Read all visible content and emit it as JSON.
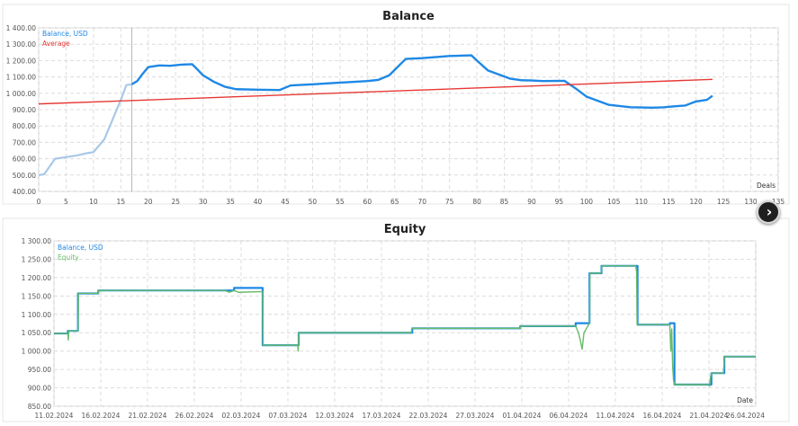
{
  "charts": [
    {
      "type": "line",
      "title": "Balance",
      "xlabel": "Deals",
      "xlim": [
        0,
        135
      ],
      "ylim": [
        400,
        1400
      ],
      "x_ticks": [
        0,
        5,
        10,
        15,
        20,
        25,
        30,
        35,
        40,
        45,
        50,
        55,
        60,
        65,
        70,
        75,
        80,
        85,
        90,
        95,
        100,
        105,
        110,
        115,
        120,
        125,
        130,
        135
      ],
      "y_ticks": [
        "400.00",
        "500.00",
        "600.00",
        "700.00",
        "800.00",
        "900.00",
        "1 000.00",
        "1 100.00",
        "1 200.00",
        "1 300.00",
        "1 400.00"
      ],
      "y_tick_values": [
        400,
        500,
        600,
        700,
        800,
        900,
        1000,
        1100,
        1200,
        1300,
        1400
      ],
      "grid": true,
      "legend": {
        "placement": "top-left",
        "entries": [
          "Balance, USD",
          "Average"
        ]
      },
      "marker_deal": 17,
      "series": [
        {
          "name": "Balance, USD",
          "color": "#1e88e5",
          "faded_color": "#a8c8e6",
          "faded_until": 17,
          "points": [
            [
              0,
              500
            ],
            [
              1,
              505
            ],
            [
              3,
              600
            ],
            [
              5,
              610
            ],
            [
              7,
              620
            ],
            [
              9,
              635
            ],
            [
              10,
              640
            ],
            [
              12,
              720
            ],
            [
              13,
              800
            ],
            [
              14,
              880
            ],
            [
              15,
              960
            ],
            [
              16,
              1050
            ],
            [
              17,
              1055
            ],
            [
              18,
              1075
            ],
            [
              19,
              1120
            ],
            [
              20,
              1160
            ],
            [
              22,
              1170
            ],
            [
              24,
              1168
            ],
            [
              26,
              1175
            ],
            [
              28,
              1178
            ],
            [
              29,
              1145
            ],
            [
              30,
              1110
            ],
            [
              32,
              1070
            ],
            [
              34,
              1040
            ],
            [
              36,
              1025
            ],
            [
              40,
              1022
            ],
            [
              44,
              1020
            ],
            [
              46,
              1048
            ],
            [
              50,
              1055
            ],
            [
              55,
              1065
            ],
            [
              60,
              1075
            ],
            [
              62,
              1082
            ],
            [
              64,
              1110
            ],
            [
              67,
              1210
            ],
            [
              70,
              1215
            ],
            [
              75,
              1228
            ],
            [
              79,
              1232
            ],
            [
              80,
              1200
            ],
            [
              82,
              1140
            ],
            [
              86,
              1090
            ],
            [
              88,
              1080
            ],
            [
              90,
              1078
            ],
            [
              92,
              1075
            ],
            [
              96,
              1076
            ],
            [
              98,
              1030
            ],
            [
              100,
              980
            ],
            [
              104,
              930
            ],
            [
              108,
              915
            ],
            [
              112,
              912
            ],
            [
              114,
              914
            ],
            [
              116,
              920
            ],
            [
              118,
              925
            ],
            [
              120,
              950
            ],
            [
              122,
              960
            ],
            [
              123,
              985
            ]
          ]
        },
        {
          "name": "Average",
          "color": "#e53935",
          "points": [
            [
              0,
              935
            ],
            [
              123,
              1085
            ]
          ]
        }
      ]
    },
    {
      "type": "line",
      "title": "Equity",
      "xlabel": "Date",
      "x_tick_labels": [
        "11.02.2024",
        "16.02.2024",
        "21.02.2024",
        "26.02.2024",
        "02.03.2024",
        "07.03.2024",
        "12.03.2024",
        "17.03.2024",
        "22.03.2024",
        "27.03.2024",
        "01.04.2024",
        "06.04.2024",
        "11.04.2024",
        "16.04.2024",
        "21.04.2024",
        "26.04.2024"
      ],
      "xlim": [
        0,
        76
      ],
      "ylim": [
        850,
        1300
      ],
      "y_ticks": [
        "850.00",
        "900.00",
        "950.00",
        "1 000.00",
        "1 050.00",
        "1 100.00",
        "1 150.00",
        "1 200.00",
        "1 250.00",
        "1 300.00"
      ],
      "y_tick_values": [
        850,
        900,
        950,
        1000,
        1050,
        1100,
        1150,
        1200,
        1250,
        1300
      ],
      "grid": true,
      "legend": {
        "placement": "top-left",
        "entries": [
          "Balance, USD",
          "Equity"
        ]
      },
      "series": [
        {
          "name": "Balance, USD",
          "color": "#1e88e5",
          "points": [
            [
              0,
              1048
            ],
            [
              1.5,
              1048
            ],
            [
              1.5,
              1055
            ],
            [
              2.6,
              1055
            ],
            [
              2.6,
              1157
            ],
            [
              4.8,
              1157
            ],
            [
              4.8,
              1165
            ],
            [
              19.5,
              1165
            ],
            [
              19.5,
              1172
            ],
            [
              22.6,
              1172
            ],
            [
              22.6,
              1016
            ],
            [
              26.5,
              1016
            ],
            [
              26.5,
              1050
            ],
            [
              38.8,
              1050
            ],
            [
              38.8,
              1062
            ],
            [
              50.5,
              1062
            ],
            [
              50.5,
              1068
            ],
            [
              56.5,
              1068
            ],
            [
              56.5,
              1076
            ],
            [
              58,
              1076
            ],
            [
              58,
              1212
            ],
            [
              59.3,
              1212
            ],
            [
              59.3,
              1232
            ],
            [
              63.2,
              1232
            ],
            [
              63.2,
              1072
            ],
            [
              66.7,
              1072
            ],
            [
              66.7,
              1076
            ],
            [
              67.2,
              1076
            ],
            [
              67.2,
              909
            ],
            [
              71.2,
              909
            ],
            [
              71.2,
              940
            ],
            [
              72.6,
              940
            ],
            [
              72.6,
              985
            ],
            [
              76,
              985
            ]
          ]
        },
        {
          "name": "Equity",
          "color": "#66bb6a",
          "points": [
            [
              0,
              1048
            ],
            [
              1.5,
              1048
            ],
            [
              1.55,
              1030
            ],
            [
              1.6,
              1055
            ],
            [
              2.6,
              1055
            ],
            [
              2.65,
              1157
            ],
            [
              4.8,
              1157
            ],
            [
              4.85,
              1165
            ],
            [
              18.5,
              1165
            ],
            [
              19,
              1160
            ],
            [
              19.5,
              1165
            ],
            [
              20,
              1160
            ],
            [
              22.6,
              1162
            ],
            [
              22.65,
              1016
            ],
            [
              26.4,
              1016
            ],
            [
              26.45,
              1000
            ],
            [
              26.5,
              1050
            ],
            [
              38.7,
              1050
            ],
            [
              38.75,
              1062
            ],
            [
              50.5,
              1062
            ],
            [
              50.55,
              1068
            ],
            [
              56.5,
              1068
            ],
            [
              56.8,
              1050
            ],
            [
              57,
              1030
            ],
            [
              57.2,
              1005
            ],
            [
              57.4,
              1050
            ],
            [
              58,
              1076
            ],
            [
              58.05,
              1212
            ],
            [
              59.2,
              1212
            ],
            [
              59.3,
              1218
            ],
            [
              59.35,
              1232
            ],
            [
              63,
              1232
            ],
            [
              63.1,
              1215
            ],
            [
              63.15,
              1072
            ],
            [
              66.7,
              1072
            ],
            [
              66.8,
              1000
            ],
            [
              66.9,
              1060
            ],
            [
              67,
              960
            ],
            [
              67.1,
              920
            ],
            [
              67.2,
              909
            ],
            [
              70.8,
              909
            ],
            [
              71,
              905
            ],
            [
              71.1,
              930
            ],
            [
              71.2,
              940
            ],
            [
              72.5,
              940
            ],
            [
              72.55,
              960
            ],
            [
              72.6,
              985
            ],
            [
              76,
              985
            ]
          ]
        }
      ]
    }
  ]
}
